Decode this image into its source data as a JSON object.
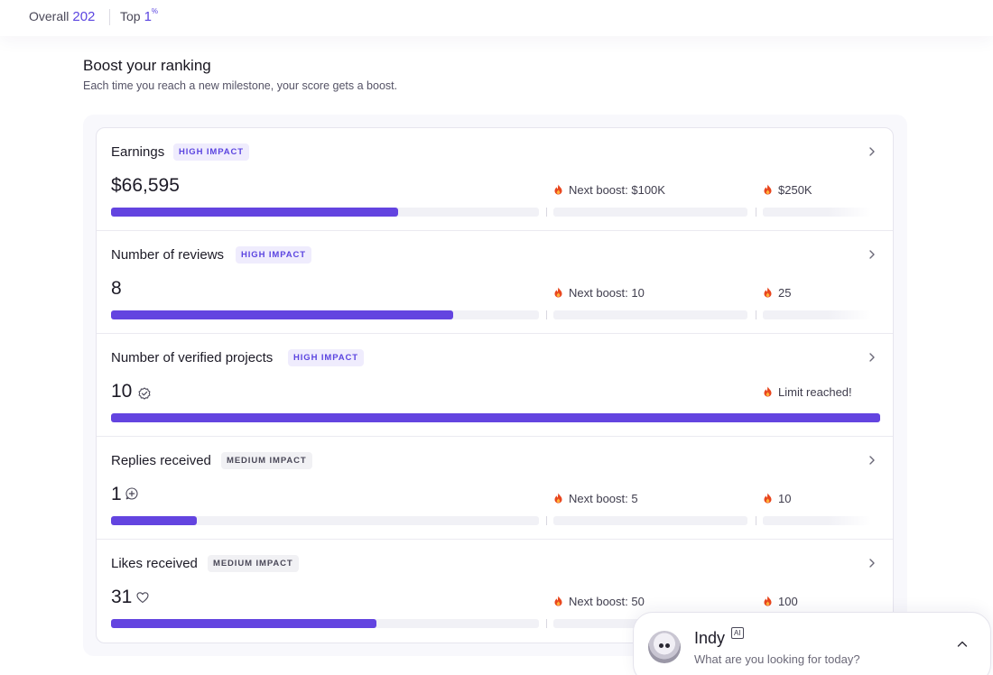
{
  "rank": {
    "overall_label": "Overall",
    "overall_value": "202",
    "top_label": "Top",
    "top_value": "1",
    "top_unit": "%"
  },
  "section": {
    "title": "Boost your ranking",
    "subtitle": "Each time you reach a new milestone, your score gets a boost."
  },
  "metrics": [
    {
      "title": "Earnings",
      "impact": "HIGH IMPACT",
      "value": "$66,595",
      "next": "Next boost: $100K",
      "far": "$250K",
      "progress": 0.67
    },
    {
      "title": "Number of reviews",
      "impact": "HIGH IMPACT",
      "value": "8",
      "next": "Next boost: 10",
      "far": "25",
      "progress": 0.8
    },
    {
      "title": "Number of verified projects",
      "impact": "HIGH IMPACT",
      "value": "10",
      "far": "Limit reached!",
      "progress": 1.0
    },
    {
      "title": "Replies received",
      "impact": "MEDIUM IMPACT",
      "value": "1",
      "next": "Next boost: 5",
      "far": "10",
      "progress": 0.2
    },
    {
      "title": "Likes received",
      "impact": "MEDIUM IMPACT",
      "value": "31",
      "next": "Next boost: 50",
      "far": "100",
      "progress": 0.62
    }
  ],
  "icons": {
    "chevron": "chevron-right-icon",
    "flame": "flame-icon",
    "verified": "verified-check-icon",
    "reply": "reply-plus-icon",
    "heart": "heart-icon"
  },
  "colors": {
    "accent": "#6344e0",
    "flame": "#e8461e"
  },
  "assistant": {
    "name": "Indy",
    "badge": "AI",
    "prompt": "What are you looking for today?"
  }
}
